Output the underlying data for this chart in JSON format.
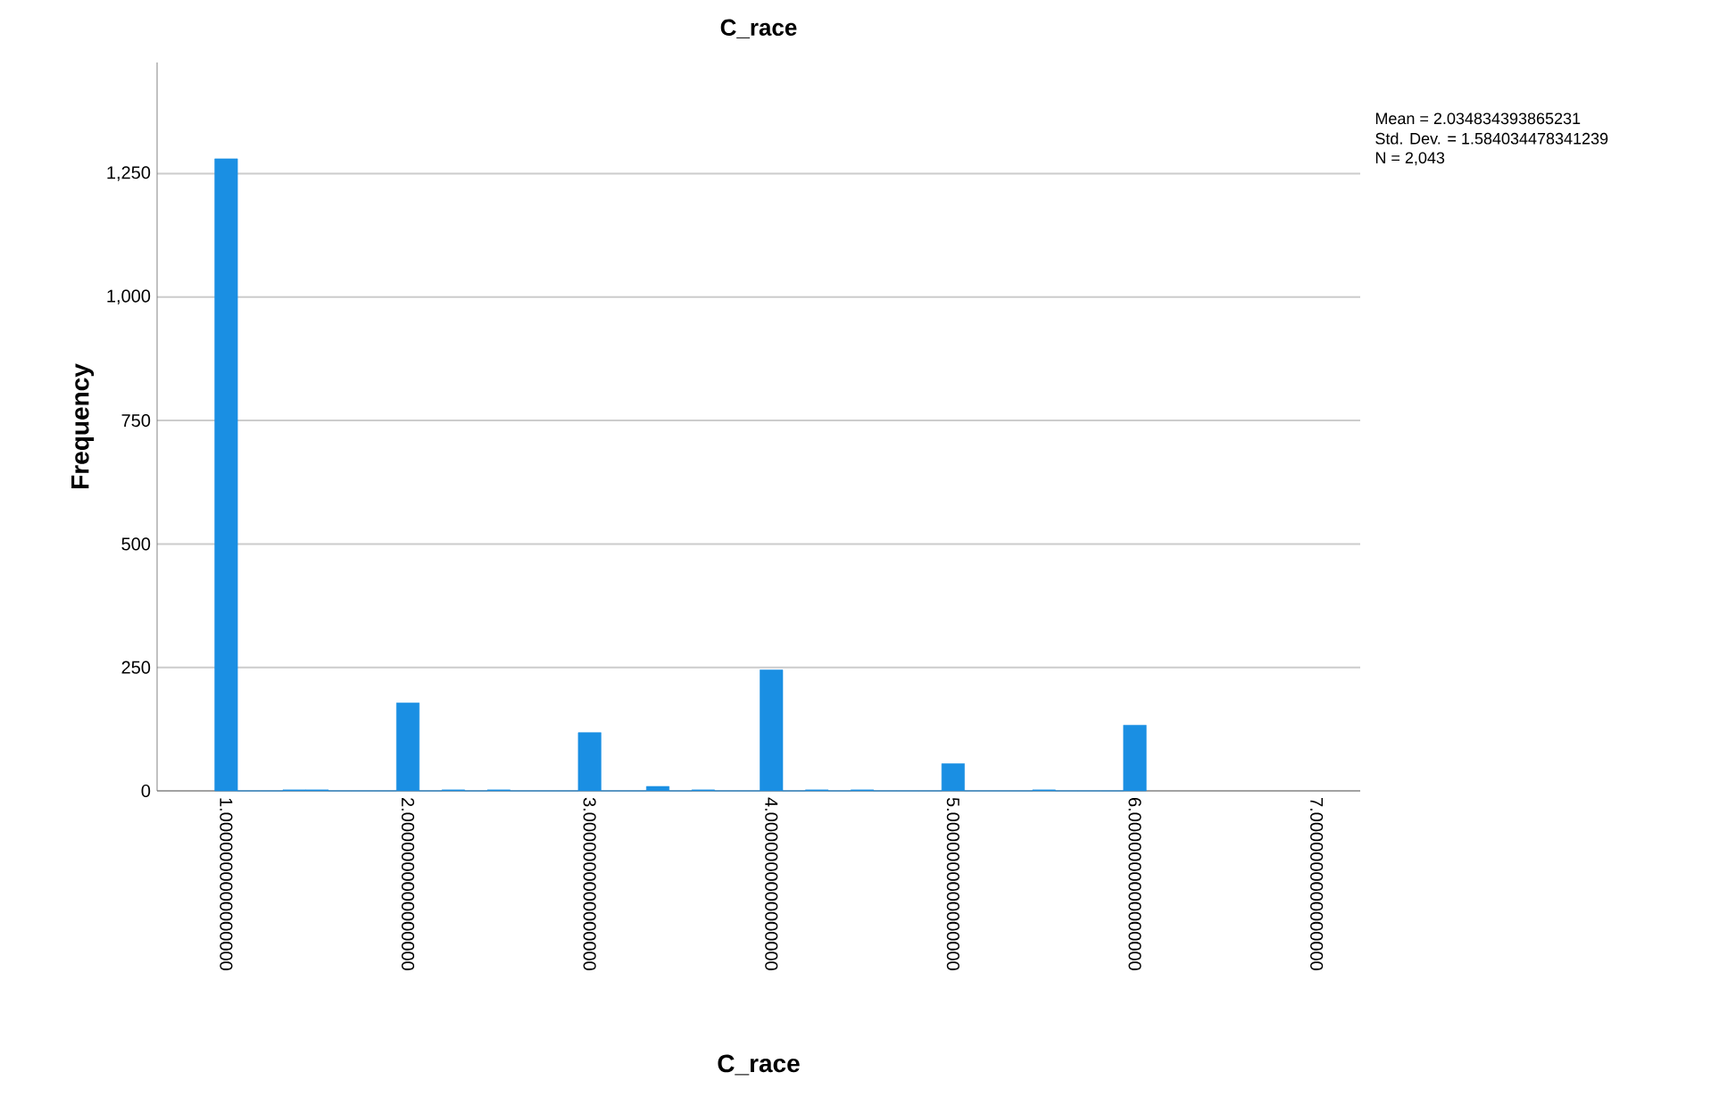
{
  "chart_data": {
    "type": "histogram",
    "title": "C_race",
    "xlabel": "C_race",
    "ylabel": "Frequency",
    "bins": [
      0.9375,
      1.0625,
      1.1875,
      1.3125,
      1.4375,
      1.5625,
      1.6875,
      1.8125,
      1.9375,
      2.0625,
      2.1875,
      2.3125,
      2.4375,
      2.5625,
      2.6875,
      2.8125,
      2.9375,
      3.0625,
      3.1875,
      3.3125,
      3.4375,
      3.5625,
      3.6875,
      3.8125,
      3.9375,
      4.0625,
      4.1875,
      4.3125,
      4.4375,
      4.5625,
      4.6875,
      4.8125,
      4.9375,
      5.0625,
      5.1875,
      5.3125,
      5.4375,
      5.5625,
      5.6875,
      5.8125,
      5.9375,
      6.0625
    ],
    "values": [
      1280,
      0,
      0,
      2,
      2,
      0,
      0,
      0,
      178,
      0,
      2,
      0,
      2,
      0,
      0,
      0,
      118,
      0,
      0,
      9,
      0,
      2,
      0,
      0,
      245,
      0,
      2,
      0,
      2,
      0,
      0,
      0,
      55,
      0,
      0,
      0,
      2,
      0,
      0,
      0,
      133
    ],
    "color": "#1a8fe3",
    "xlim": [
      0.62,
      7.24
    ],
    "ylim": [
      0,
      1475
    ],
    "xticks": [
      {
        "value": 1,
        "label": "1.0000000000000000"
      },
      {
        "value": 2,
        "label": "2.0000000000000000"
      },
      {
        "value": 3,
        "label": "3.0000000000000000"
      },
      {
        "value": 4,
        "label": "4.0000000000000000"
      },
      {
        "value": 5,
        "label": "5.0000000000000000"
      },
      {
        "value": 6,
        "label": "6.0000000000000000"
      },
      {
        "value": 7,
        "label": "7.0000000000000000"
      }
    ],
    "yticks": [
      0,
      {
        "value": 250,
        "label": "250"
      },
      {
        "value": 500,
        "label": "500"
      },
      {
        "value": 750,
        "label": "750"
      },
      {
        "value": 1000,
        "label": "1,000"
      },
      {
        "value": 1250,
        "label": "1,250"
      }
    ],
    "grid": "y",
    "annotations": [
      "Mean = 2.034834393865231",
      "Std. Dev. = 1.584034478341239",
      "N = 2,043"
    ]
  }
}
